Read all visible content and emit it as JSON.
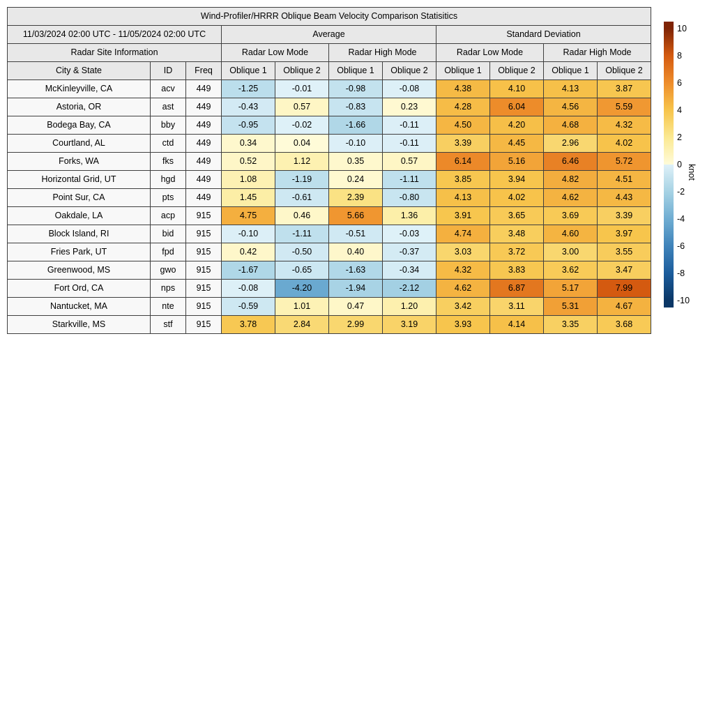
{
  "table": {
    "date_range": "11/03/2024 02:00 UTC - 11/05/2024 02:00 UTC",
    "groups": {
      "average": "Average",
      "std_dev": "Standard Deviation"
    },
    "site_info_header": "Radar Site Information",
    "mode_headers": [
      "Radar Low Mode",
      "Radar High Mode",
      "Radar Low Mode",
      "Radar High Mode"
    ],
    "site_columns": [
      "City & State",
      "ID",
      "Freq"
    ],
    "oblique_headers": [
      "Oblique 1",
      "Oblique 2",
      "Oblique 1",
      "Oblique 2",
      "Oblique 1",
      "Oblique 2",
      "Oblique 1",
      "Oblique 2"
    ]
  },
  "chart_data": {
    "type": "heatmap",
    "title": "Wind-Profiler/HRRR Oblique Beam Velocity Comparison Statisitics",
    "date_range": "11/03/2024 02:00 UTC - 11/05/2024 02:00 UTC",
    "column_groups": [
      "Average",
      "Standard Deviation"
    ],
    "subcolumns": [
      "Radar Low Mode Oblique 1",
      "Radar Low Mode Oblique 2",
      "Radar High Mode Oblique 1",
      "Radar High Mode Oblique 2"
    ],
    "rows": [
      {
        "city": "McKinleyville, CA",
        "id": "acv",
        "freq": 449,
        "values": [
          -1.25,
          -0.01,
          -0.98,
          -0.08,
          4.38,
          4.1,
          4.13,
          3.87
        ]
      },
      {
        "city": "Astoria, OR",
        "id": "ast",
        "freq": 449,
        "values": [
          -0.43,
          0.57,
          -0.83,
          0.23,
          4.28,
          6.04,
          4.56,
          5.59
        ]
      },
      {
        "city": "Bodega Bay, CA",
        "id": "bby",
        "freq": 449,
        "values": [
          -0.95,
          -0.02,
          -1.66,
          -0.11,
          4.5,
          4.2,
          4.68,
          4.32
        ]
      },
      {
        "city": "Courtland, AL",
        "id": "ctd",
        "freq": 449,
        "values": [
          0.34,
          0.04,
          -0.1,
          -0.11,
          3.39,
          4.45,
          2.96,
          4.02
        ]
      },
      {
        "city": "Forks, WA",
        "id": "fks",
        "freq": 449,
        "values": [
          0.52,
          1.12,
          0.35,
          0.57,
          6.14,
          5.16,
          6.46,
          5.72
        ]
      },
      {
        "city": "Horizontal Grid, UT",
        "id": "hgd",
        "freq": 449,
        "values": [
          1.08,
          -1.19,
          0.24,
          -1.11,
          3.85,
          3.94,
          4.82,
          4.51
        ]
      },
      {
        "city": "Point Sur, CA",
        "id": "pts",
        "freq": 449,
        "values": [
          1.45,
          -0.61,
          2.39,
          -0.8,
          4.13,
          4.02,
          4.62,
          4.43
        ]
      },
      {
        "city": "Oakdale, LA",
        "id": "acp",
        "freq": 915,
        "values": [
          4.75,
          0.46,
          5.66,
          1.36,
          3.91,
          3.65,
          3.69,
          3.39
        ]
      },
      {
        "city": "Block Island, RI",
        "id": "bid",
        "freq": 915,
        "values": [
          -0.1,
          -1.11,
          -0.51,
          -0.03,
          4.74,
          3.48,
          4.6,
          3.97
        ]
      },
      {
        "city": "Fries Park, UT",
        "id": "fpd",
        "freq": 915,
        "values": [
          0.42,
          -0.5,
          0.4,
          -0.37,
          3.03,
          3.72,
          3.0,
          3.55
        ]
      },
      {
        "city": "Greenwood, MS",
        "id": "gwo",
        "freq": 915,
        "values": [
          -1.67,
          -0.65,
          -1.63,
          -0.34,
          4.32,
          3.83,
          3.62,
          3.47
        ]
      },
      {
        "city": "Fort Ord, CA",
        "id": "nps",
        "freq": 915,
        "values": [
          -0.08,
          -4.2,
          -1.94,
          -2.12,
          4.62,
          6.87,
          5.17,
          7.99
        ]
      },
      {
        "city": "Nantucket, MA",
        "id": "nte",
        "freq": 915,
        "values": [
          -0.59,
          1.01,
          0.47,
          1.2,
          3.42,
          3.11,
          5.31,
          4.67
        ]
      },
      {
        "city": "Starkville, MS",
        "id": "stf",
        "freq": 915,
        "values": [
          3.78,
          2.84,
          2.99,
          3.19,
          3.93,
          4.14,
          3.35,
          3.68
        ]
      }
    ],
    "colorbar": {
      "label": "knot",
      "ticks": [
        10,
        8,
        6,
        4,
        2,
        0,
        -2,
        -4,
        -6,
        -8,
        -10
      ],
      "vmin": -10.5,
      "vmax": 10.5
    },
    "colormap": {
      "positive": [
        [
          0,
          "#fffbd9"
        ],
        [
          2,
          "#fbe992"
        ],
        [
          4,
          "#f7c44b"
        ],
        [
          6,
          "#ee8d2b"
        ],
        [
          8,
          "#d45a10"
        ],
        [
          10,
          "#7f2405"
        ]
      ],
      "negative": [
        [
          -10,
          "#0b3766"
        ],
        [
          -8,
          "#1b5c9c"
        ],
        [
          -6,
          "#3f83ba"
        ],
        [
          -4,
          "#6fadd2"
        ],
        [
          -2,
          "#a6d2e4"
        ],
        [
          0,
          "#dff1f8"
        ]
      ]
    }
  },
  "colors": {
    "header_bg": "#e8e8e8",
    "site_cell_bg": "#f8f8f8",
    "border": "#3f3f3f"
  }
}
